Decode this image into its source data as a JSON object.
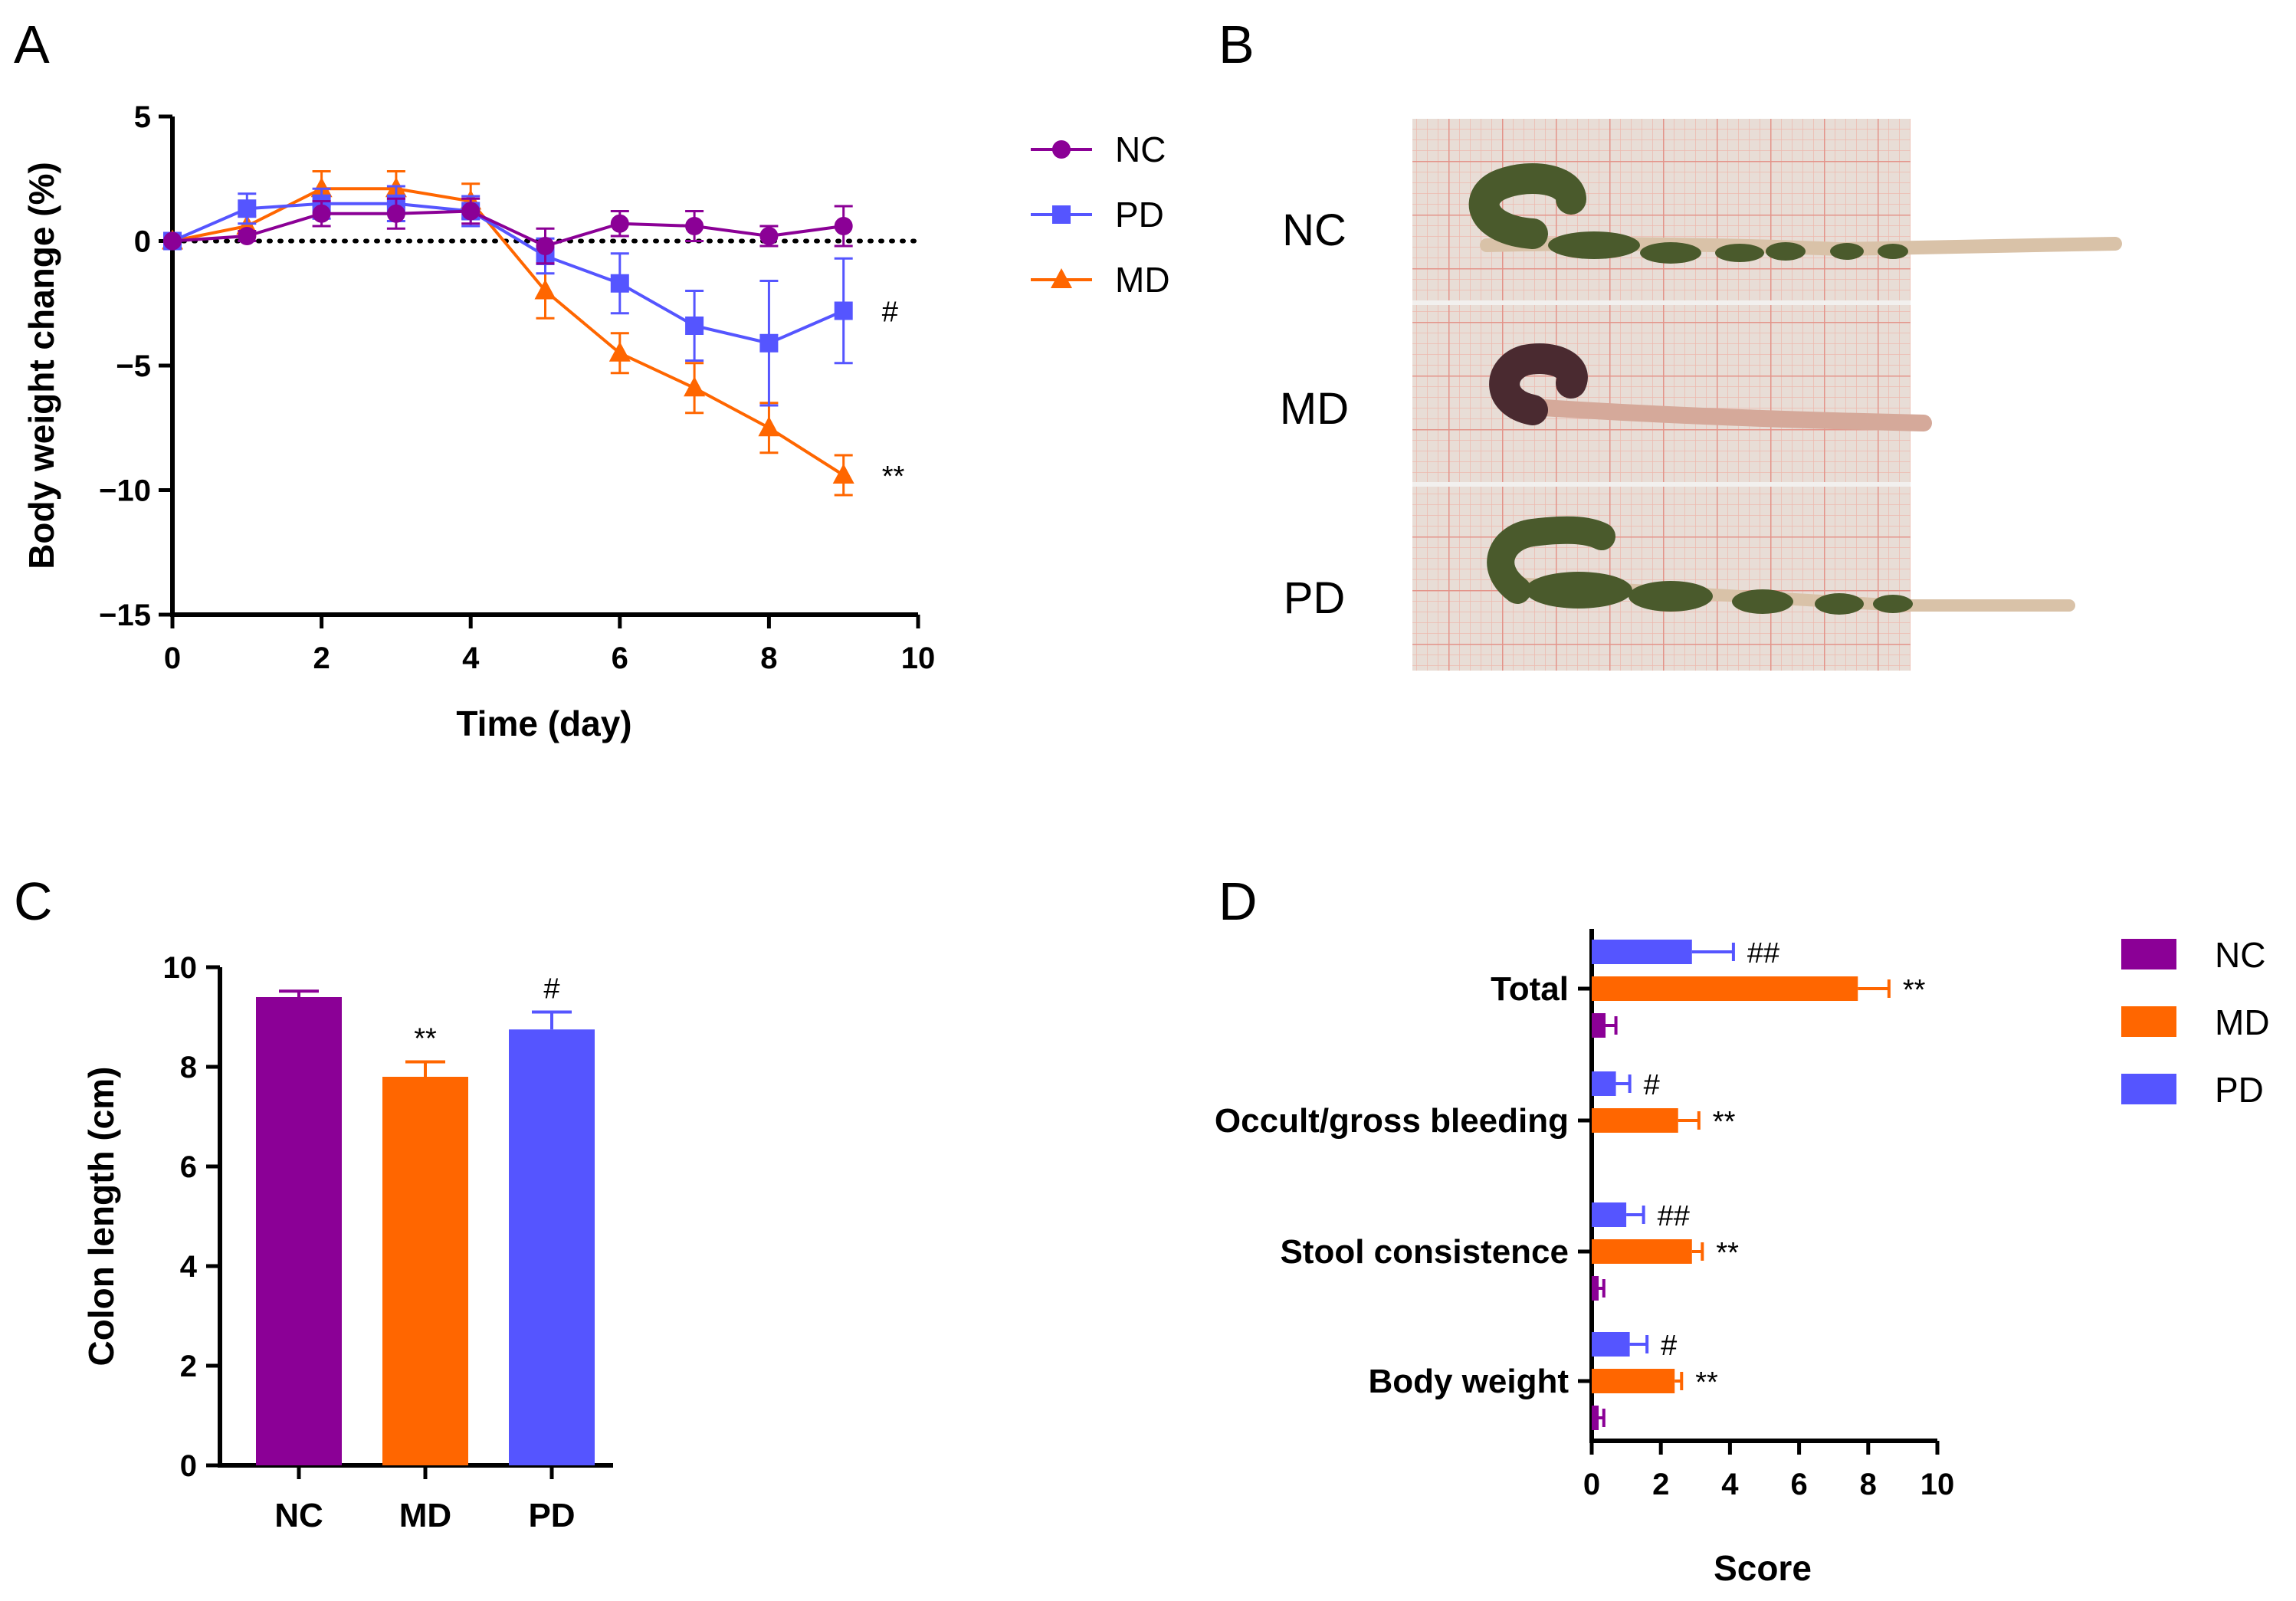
{
  "panels": {
    "a": "A",
    "b": "B",
    "c": "C",
    "d": "D"
  },
  "colors": {
    "NC": "#8B0096",
    "MD": "#FF6600",
    "PD": "#5555FF"
  },
  "chart_data": [
    {
      "id": "A",
      "type": "line",
      "xlabel": "Time (day)",
      "ylabel": "Body weight change (%)",
      "xlim": [
        0,
        10
      ],
      "ylim": [
        -15,
        5
      ],
      "xticks": [
        0,
        2,
        4,
        6,
        8,
        10
      ],
      "yticks": [
        5,
        0,
        -5,
        -10,
        -15
      ],
      "ytick_labels": [
        "5",
        "0",
        "−5",
        "−10",
        "−15"
      ],
      "reference_line_y": 0,
      "series": [
        {
          "name": "NC",
          "marker": "circle",
          "x": [
            0,
            1,
            2,
            3,
            4,
            5,
            6,
            7,
            8,
            9
          ],
          "y": [
            0,
            0.2,
            1.1,
            1.1,
            1.2,
            -0.2,
            0.7,
            0.6,
            0.2,
            0.6
          ],
          "err": [
            0,
            0.2,
            0.5,
            0.6,
            0.5,
            0.7,
            0.5,
            0.6,
            0.4,
            0.8
          ]
        },
        {
          "name": "PD",
          "marker": "square",
          "x": [
            0,
            1,
            2,
            3,
            4,
            5,
            6,
            7,
            8,
            9
          ],
          "y": [
            0,
            1.3,
            1.5,
            1.5,
            1.2,
            -0.6,
            -1.7,
            -3.4,
            -4.1,
            -2.8
          ],
          "err": [
            0,
            0.6,
            0.6,
            0.7,
            0.6,
            0.7,
            1.2,
            1.4,
            2.5,
            2.1
          ]
        },
        {
          "name": "MD",
          "marker": "triangle",
          "x": [
            0,
            1,
            2,
            3,
            4,
            5,
            6,
            7,
            8,
            9
          ],
          "y": [
            0,
            0.6,
            2.1,
            2.1,
            1.6,
            -2.0,
            -4.5,
            -5.9,
            -7.5,
            -9.4
          ],
          "err": [
            0,
            0.4,
            0.7,
            0.7,
            0.7,
            1.1,
            0.8,
            1.0,
            1.0,
            0.8
          ]
        }
      ],
      "annotations": [
        {
          "series": "PD",
          "text": "#"
        },
        {
          "series": "MD",
          "text": "**"
        }
      ],
      "legend": [
        "NC",
        "PD",
        "MD"
      ]
    },
    {
      "id": "C",
      "type": "bar",
      "ylabel": "Colon length (cm)",
      "ylim": [
        0,
        10
      ],
      "yticks": [
        0,
        2,
        4,
        6,
        8,
        10
      ],
      "categories": [
        "NC",
        "MD",
        "PD"
      ],
      "values": [
        9.4,
        7.8,
        8.75
      ],
      "err": [
        0.12,
        0.3,
        0.35
      ],
      "annotations": [
        "",
        "**",
        "#"
      ]
    },
    {
      "id": "D",
      "type": "bar",
      "orientation": "horizontal",
      "xlabel": "Score",
      "xlim": [
        0,
        10
      ],
      "xticks": [
        0,
        2,
        4,
        6,
        8,
        10
      ],
      "categories": [
        "Total",
        "Occult/gross bleeding",
        "Stool consistence",
        "Body weight"
      ],
      "series": [
        {
          "name": "PD",
          "values": [
            2.9,
            0.7,
            1.0,
            1.1
          ],
          "err": [
            1.2,
            0.4,
            0.5,
            0.5
          ],
          "annotations": [
            "##",
            "#",
            "##",
            "#"
          ]
        },
        {
          "name": "MD",
          "values": [
            7.7,
            2.5,
            2.9,
            2.4
          ],
          "err": [
            0.9,
            0.6,
            0.3,
            0.2
          ],
          "annotations": [
            "**",
            "**",
            "**",
            "**"
          ]
        },
        {
          "name": "NC",
          "values": [
            0.4,
            0.0,
            0.2,
            0.2
          ],
          "err": [
            0.3,
            0.0,
            0.15,
            0.15
          ],
          "annotations": [
            "",
            "",
            "",
            ""
          ]
        }
      ],
      "legend": [
        "NC",
        "MD",
        "PD"
      ]
    }
  ],
  "photo_b": {
    "labels": [
      "NC",
      "MD",
      "PD"
    ],
    "colors": {
      "paper": "#E6DAD2",
      "grid": "#E9A99B",
      "stool": "#4A5A2C",
      "colon": "#D9C2A8",
      "dark_tissue": "#4A2A30"
    }
  }
}
